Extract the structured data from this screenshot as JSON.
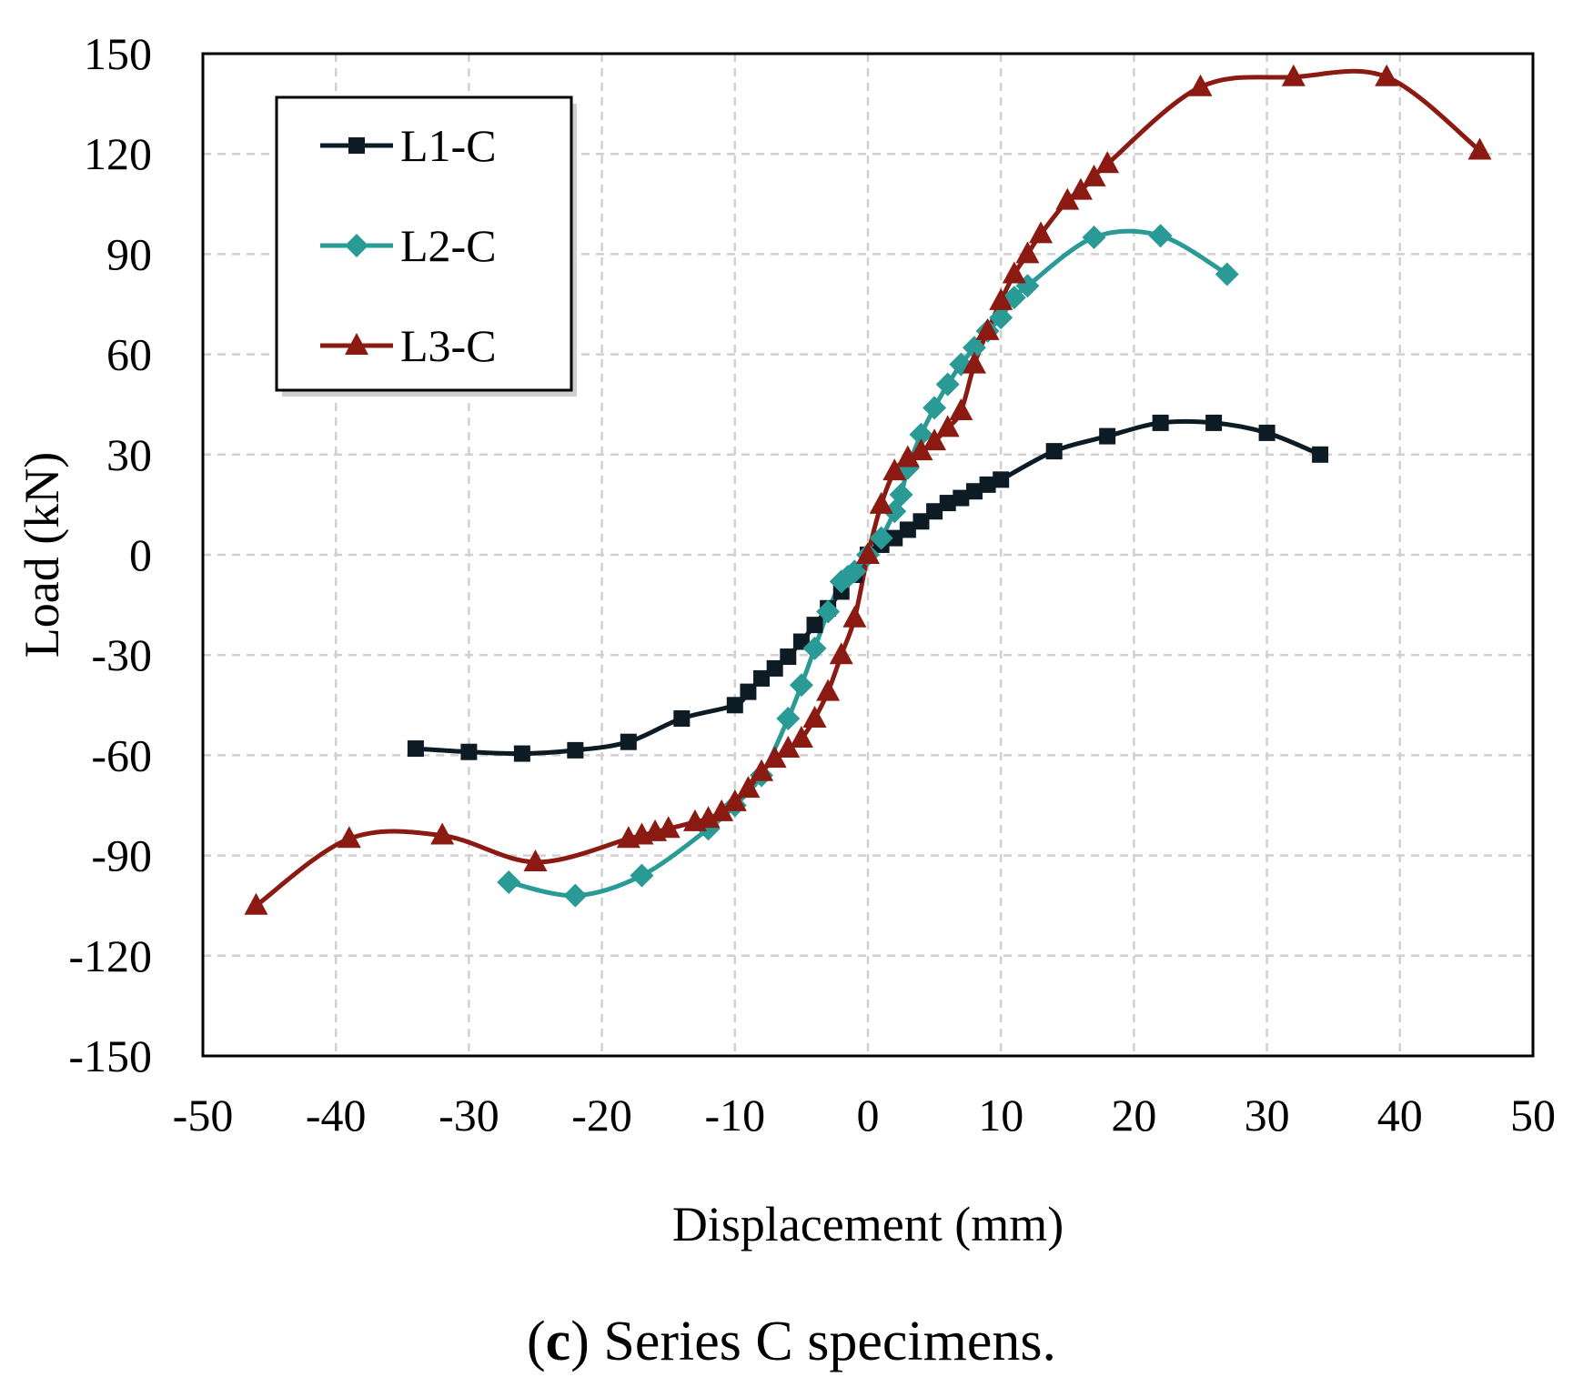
{
  "chart_data": {
    "type": "line",
    "xlabel": "Displacement (mm)",
    "ylabel": "Load (kN)",
    "xlim": [
      -50,
      50
    ],
    "ylim": [
      -150,
      150
    ],
    "xticks": [
      -50,
      -40,
      -30,
      -20,
      -10,
      0,
      10,
      20,
      30,
      40,
      50
    ],
    "yticks": [
      150,
      120,
      90,
      60,
      30,
      0,
      -30,
      -60,
      -90,
      -120,
      -150
    ],
    "grid": true,
    "legend_position": "top-left",
    "caption_label": "c",
    "caption_text": " Series C specimens.",
    "series": [
      {
        "name": "L1-C",
        "color": "#0d1b24",
        "marker": "square",
        "x": [
          -34,
          -30,
          -26,
          -22,
          -18,
          -14,
          -10,
          -9,
          -8,
          -7,
          -6,
          -5,
          -4,
          -3,
          -2,
          -1,
          0,
          1,
          2,
          3,
          4,
          5,
          6,
          7,
          8,
          9,
          10,
          14,
          18,
          22,
          26,
          30,
          34
        ],
        "y": [
          -58,
          -59,
          -59.5,
          -58.5,
          -56,
          -49,
          -45,
          -41,
          -37,
          -34,
          -30.5,
          -26,
          -21,
          -16,
          -11,
          -6,
          0,
          3,
          5,
          7.5,
          10,
          13,
          15.5,
          17,
          19,
          21,
          22.5,
          31,
          35.5,
          39.5,
          39.5,
          36.5,
          30
        ]
      },
      {
        "name": "L2-C",
        "color": "#2a9a96",
        "marker": "diamond",
        "x": [
          -27,
          -22,
          -17,
          -12,
          -10,
          -8,
          -6,
          -5,
          -4,
          -3,
          -2,
          -1.5,
          -1,
          0,
          1,
          2,
          2.5,
          3,
          4,
          5,
          6,
          7,
          8,
          9,
          10,
          11,
          12,
          17,
          22,
          27
        ],
        "y": [
          -98,
          -102,
          -96,
          -82,
          -75,
          -66,
          -49,
          -39,
          -28,
          -17,
          -8,
          -6.5,
          -5,
          0,
          5,
          13,
          18,
          26,
          36,
          44,
          51,
          57,
          62,
          67,
          71,
          77,
          80.5,
          95,
          95.5,
          84
        ]
      },
      {
        "name": "L3-C",
        "color": "#8b1a12",
        "marker": "triangle",
        "x": [
          -46,
          -39,
          -32,
          -25,
          -18,
          -17,
          -16,
          -15,
          -13,
          -12,
          -11,
          -10,
          -9,
          -8,
          -7,
          -6,
          -5,
          -4,
          -3,
          -2,
          -1,
          0,
          1,
          2,
          3,
          4,
          5,
          6,
          7,
          8,
          9,
          10,
          11,
          12,
          13,
          15,
          16,
          17,
          18,
          25,
          32,
          39,
          46
        ],
        "y": [
          -105,
          -85,
          -84,
          -92,
          -85,
          -84,
          -83,
          -82,
          -80,
          -79,
          -77,
          -74,
          -70,
          -65,
          -61,
          -58,
          -55,
          -49,
          -41,
          -30,
          -19,
          0,
          15,
          25,
          29,
          31,
          34,
          38,
          43,
          57,
          67,
          76,
          84,
          90,
          96,
          106,
          109,
          113,
          117,
          140,
          143,
          143,
          121
        ]
      }
    ]
  }
}
